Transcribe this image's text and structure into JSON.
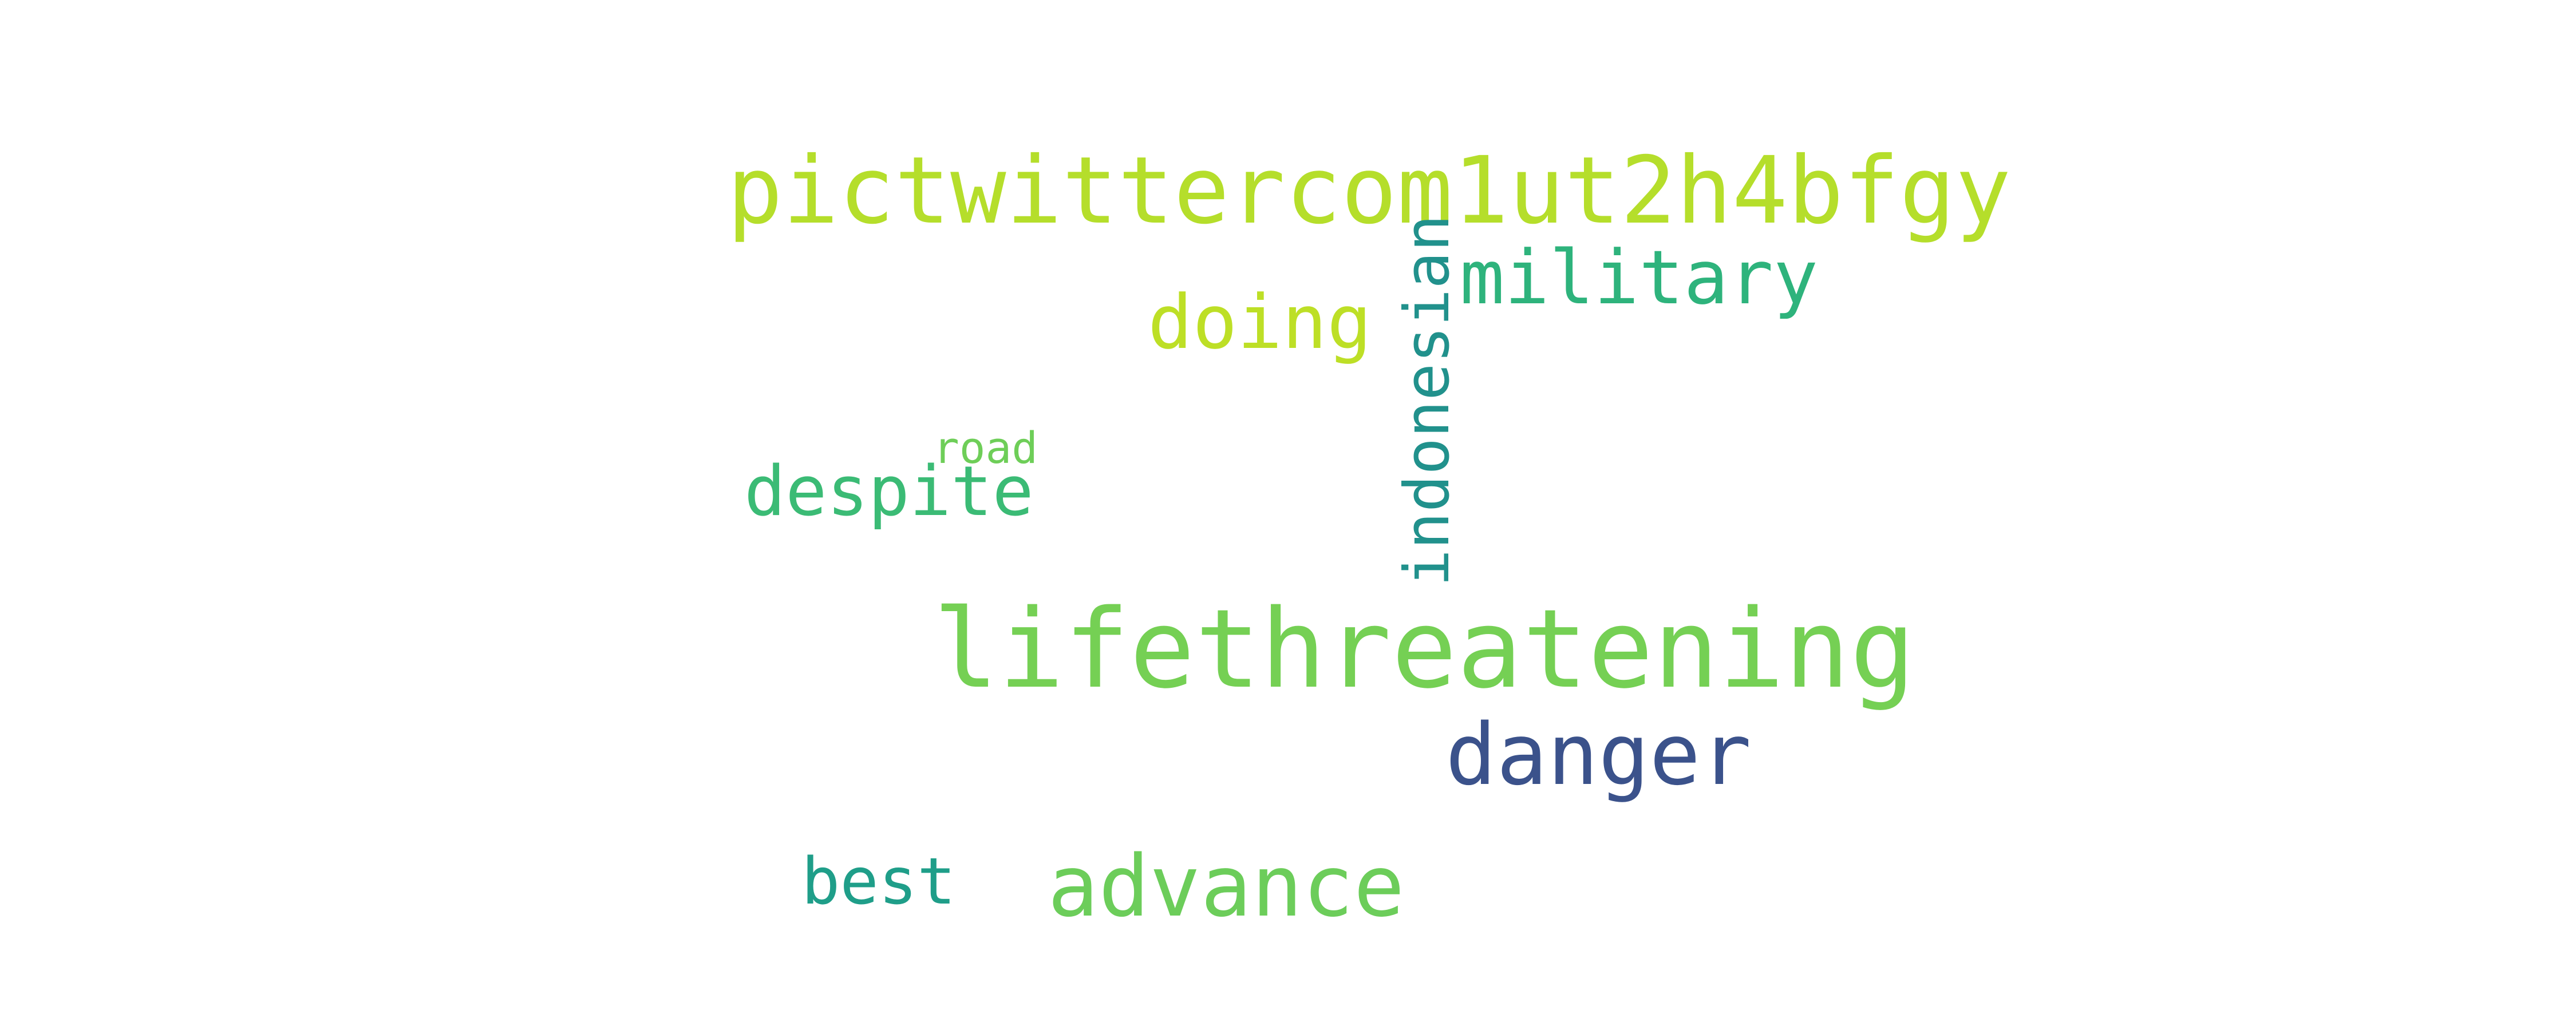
{
  "background_color": "#ffffff",
  "words": [
    {
      "key": "pictwitter",
      "text": "pictwittercom1ut2h4bfgy",
      "color": "#b5de2b",
      "orientation": "horizontal"
    },
    {
      "key": "military",
      "text": "military",
      "color": "#2eb37c",
      "orientation": "horizontal"
    },
    {
      "key": "doing",
      "text": "doing",
      "color": "#bddf26",
      "orientation": "horizontal"
    },
    {
      "key": "road",
      "text": "road",
      "color": "#6ece58",
      "orientation": "horizontal"
    },
    {
      "key": "despite",
      "text": "despite",
      "color": "#3bbb75",
      "orientation": "horizontal"
    },
    {
      "key": "indonesian",
      "text": "indonesian",
      "color": "#21918c",
      "orientation": "vertical"
    },
    {
      "key": "lifethreatening",
      "text": "lifethreatening",
      "color": "#75d054",
      "orientation": "horizontal"
    },
    {
      "key": "danger",
      "text": "danger",
      "color": "#3b528b",
      "orientation": "horizontal"
    },
    {
      "key": "best",
      "text": "best",
      "color": "#1f9e89",
      "orientation": "horizontal"
    },
    {
      "key": "advance",
      "text": "advance",
      "color": "#6ccd5a",
      "orientation": "horizontal"
    }
  ]
}
